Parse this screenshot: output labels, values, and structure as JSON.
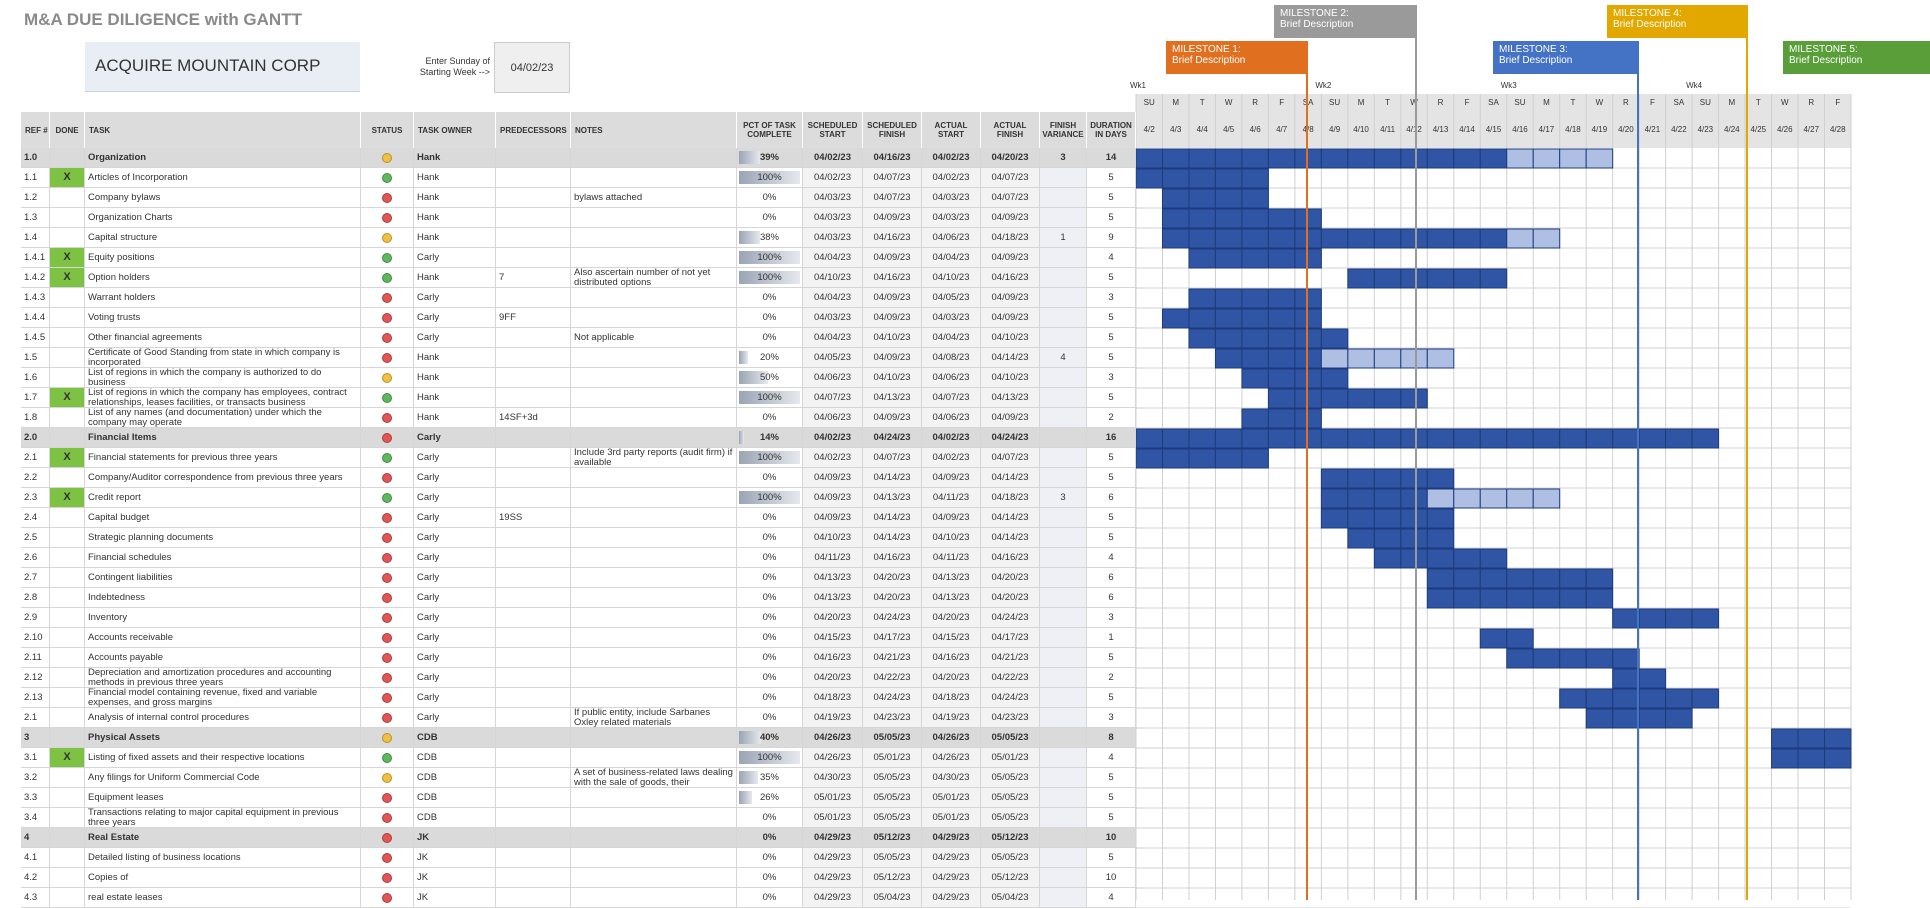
{
  "header": {
    "title": "M&A DUE DILIGENCE with GANTT",
    "company": "ACQUIRE MOUNTAIN CORP",
    "start_label": "Enter Sunday of Starting Week -->",
    "start_date": "04/02/23"
  },
  "milestones": [
    {
      "title": "MILESTONE 1:",
      "description": "Brief Description",
      "color": "#e07020"
    },
    {
      "title": "MILESTONE 2:",
      "description": "Brief Description",
      "color": "#9a9a9a"
    },
    {
      "title": "MILESTONE 3:",
      "description": "Brief Description",
      "color": "#4472c4"
    },
    {
      "title": "MILESTONE 4:",
      "description": "Brief Description",
      "color": "#e2a800"
    },
    {
      "title": "MILESTONE 5:",
      "description": "Brief Description",
      "color": "#5a9e3a"
    }
  ],
  "columns": [
    "REF #",
    "DONE",
    "TASK",
    "STATUS",
    "TASK OWNER",
    "PREDECESSORS",
    "NOTES",
    "PCT OF TASK COMPLETE",
    "SCHEDULED START",
    "SCHEDULED FINISH",
    "ACTUAL START",
    "ACTUAL FINISH",
    "FINISH VARIANCE",
    "DURATION IN DAYS"
  ],
  "gantt": {
    "weeks": [
      "Wk1",
      "Wk2",
      "Wk3",
      "Wk4"
    ],
    "days": [
      "SU",
      "M",
      "T",
      "W",
      "R",
      "F",
      "SA",
      "SU",
      "M",
      "T",
      "W",
      "R",
      "F",
      "SA",
      "SU",
      "M",
      "T",
      "W",
      "R",
      "F",
      "SA",
      "SU",
      "M",
      "T",
      "W",
      "R",
      "F"
    ],
    "dates": [
      "4/2",
      "4/3",
      "4/4",
      "4/5",
      "4/6",
      "4/7",
      "4/8",
      "4/9",
      "4/10",
      "4/11",
      "4/12",
      "4/13",
      "4/14",
      "4/15",
      "4/16",
      "4/17",
      "4/18",
      "4/19",
      "4/20",
      "4/21",
      "4/22",
      "4/23",
      "4/24",
      "4/25",
      "4/26",
      "4/27",
      "4/28"
    ]
  },
  "group_rows": [
    0,
    14,
    29,
    34
  ],
  "rows": [
    [
      "1.0",
      null,
      "Organization",
      "yellow",
      "Hank",
      null,
      null,
      "39%",
      "04/02/23",
      "04/16/23",
      "04/02/23",
      "04/20/23",
      "3",
      "14"
    ],
    [
      "1.1",
      "X",
      "Articles of Incorporation",
      "green",
      "Hank",
      null,
      null,
      "100%",
      "04/02/23",
      "04/07/23",
      "04/02/23",
      "04/07/23",
      null,
      "5"
    ],
    [
      "1.2",
      null,
      "Company bylaws",
      "red",
      "Hank",
      null,
      "bylaws attached",
      "0%",
      "04/03/23",
      "04/07/23",
      "04/03/23",
      "04/07/23",
      null,
      "5"
    ],
    [
      "1.3",
      null,
      "Organization Charts",
      "red",
      "Hank",
      null,
      null,
      "0%",
      "04/03/23",
      "04/09/23",
      "04/03/23",
      "04/09/23",
      null,
      "5"
    ],
    [
      "1.4",
      null,
      "Capital structure",
      "yellow",
      "Hank",
      null,
      null,
      "38%",
      "04/03/23",
      "04/16/23",
      "04/06/23",
      "04/18/23",
      "1",
      "9"
    ],
    [
      "1.4.1",
      "X",
      "Equity positions",
      "green",
      "Carly",
      null,
      null,
      "100%",
      "04/04/23",
      "04/09/23",
      "04/04/23",
      "04/09/23",
      null,
      "4"
    ],
    [
      "1.4.2",
      "X",
      "Option holders",
      "green",
      "Hank",
      "7",
      "Also ascertain number of not yet distributed options",
      "100%",
      "04/10/23",
      "04/16/23",
      "04/10/23",
      "04/16/23",
      null,
      "5"
    ],
    [
      "1.4.3",
      null,
      "Warrant holders",
      "red",
      "Carly",
      null,
      null,
      "0%",
      "04/04/23",
      "04/09/23",
      "04/05/23",
      "04/09/23",
      null,
      "3"
    ],
    [
      "1.4.4",
      null,
      "Voting trusts",
      "red",
      "Carly",
      "9FF",
      null,
      "0%",
      "04/03/23",
      "04/09/23",
      "04/03/23",
      "04/09/23",
      null,
      "5"
    ],
    [
      "1.4.5",
      null,
      "Other financial agreements",
      "red",
      "Carly",
      null,
      "Not applicable",
      "0%",
      "04/04/23",
      "04/10/23",
      "04/04/23",
      "04/10/23",
      null,
      "5"
    ],
    [
      "1.5",
      null,
      "Certificate of Good Standing from state in which company is incorporated",
      "red",
      "Hank",
      null,
      null,
      "20%",
      "04/05/23",
      "04/09/23",
      "04/08/23",
      "04/14/23",
      "4",
      "5"
    ],
    [
      "1.6",
      null,
      "List of regions in which the company is authorized to do business",
      "yellow",
      "Hank",
      null,
      null,
      "50%",
      "04/06/23",
      "04/10/23",
      "04/06/23",
      "04/10/23",
      null,
      "3"
    ],
    [
      "1.7",
      "X",
      "List of regions in which the company has employees, contract relationships, leases facilities, or transacts business",
      "green",
      "Hank",
      null,
      null,
      "100%",
      "04/07/23",
      "04/13/23",
      "04/07/23",
      "04/13/23",
      null,
      "5"
    ],
    [
      "1.8",
      null,
      "List of any names (and documentation) under which the company may operate",
      "red",
      "Hank",
      "14SF+3d",
      null,
      "0%",
      "04/06/23",
      "04/09/23",
      "04/06/23",
      "04/09/23",
      null,
      "2"
    ],
    [
      "2.0",
      null,
      "Financial Items",
      "red",
      "Carly",
      null,
      null,
      "14%",
      "04/02/23",
      "04/24/23",
      "04/02/23",
      "04/24/23",
      null,
      "16"
    ],
    [
      "2.1",
      "X",
      "Financial statements for previous three years",
      "green",
      "Carly",
      null,
      "Include 3rd party reports (audit firm) if available",
      "100%",
      "04/02/23",
      "04/07/23",
      "04/02/23",
      "04/07/23",
      null,
      "5"
    ],
    [
      "2.2",
      null,
      "Company/Auditor correspondence from previous three years",
      "red",
      "Carly",
      null,
      null,
      "0%",
      "04/09/23",
      "04/14/23",
      "04/09/23",
      "04/14/23",
      null,
      "5"
    ],
    [
      "2.3",
      "X",
      "Credit report",
      "green",
      "Carly",
      null,
      null,
      "100%",
      "04/09/23",
      "04/13/23",
      "04/11/23",
      "04/18/23",
      "3",
      "6"
    ],
    [
      "2.4",
      null,
      "Capital budget",
      "red",
      "Carly",
      "19SS",
      null,
      "0%",
      "04/09/23",
      "04/14/23",
      "04/09/23",
      "04/14/23",
      null,
      "5"
    ],
    [
      "2.5",
      null,
      "Strategic planning documents",
      "red",
      "Carly",
      null,
      null,
      "0%",
      "04/10/23",
      "04/14/23",
      "04/10/23",
      "04/14/23",
      null,
      "5"
    ],
    [
      "2.6",
      null,
      "Financial schedules",
      "red",
      "Carly",
      null,
      null,
      "0%",
      "04/11/23",
      "04/16/23",
      "04/11/23",
      "04/16/23",
      null,
      "4"
    ],
    [
      "2.7",
      null,
      "Contingent liabilities",
      "red",
      "Carly",
      null,
      null,
      "0%",
      "04/13/23",
      "04/20/23",
      "04/13/23",
      "04/20/23",
      null,
      "6"
    ],
    [
      "2.8",
      null,
      "Indebtedness",
      "red",
      "Carly",
      null,
      null,
      "0%",
      "04/13/23",
      "04/20/23",
      "04/13/23",
      "04/20/23",
      null,
      "6"
    ],
    [
      "2.9",
      null,
      "Inventory",
      "red",
      "Carly",
      null,
      null,
      "0%",
      "04/20/23",
      "04/24/23",
      "04/20/23",
      "04/24/23",
      null,
      "3"
    ],
    [
      "2.10",
      null,
      "Accounts receivable",
      "red",
      "Carly",
      null,
      null,
      "0%",
      "04/15/23",
      "04/17/23",
      "04/15/23",
      "04/17/23",
      null,
      "1"
    ],
    [
      "2.11",
      null,
      "Accounts payable",
      "red",
      "Carly",
      null,
      null,
      "0%",
      "04/16/23",
      "04/21/23",
      "04/16/23",
      "04/21/23",
      null,
      "5"
    ],
    [
      "2.12",
      null,
      "Depreciation and amortization procedures and accounting methods in previous three years",
      "red",
      "Carly",
      null,
      null,
      "0%",
      "04/20/23",
      "04/22/23",
      "04/20/23",
      "04/22/23",
      null,
      "2"
    ],
    [
      "2.13",
      null,
      "Financial model containing revenue, fixed and variable expenses, and gross margins",
      "red",
      "Carly",
      null,
      null,
      "0%",
      "04/18/23",
      "04/24/23",
      "04/18/23",
      "04/24/23",
      null,
      "5"
    ],
    [
      "2.1",
      null,
      "Analysis of internal control procedures",
      "red",
      "Carly",
      null,
      "If public entity, include Sarbanes Oxley related materials",
      "0%",
      "04/19/23",
      "04/23/23",
      "04/19/23",
      "04/23/23",
      null,
      "3"
    ],
    [
      "3",
      null,
      "Physical Assets",
      "yellow",
      "CDB",
      null,
      null,
      "40%",
      "04/26/23",
      "05/05/23",
      "04/26/23",
      "05/05/23",
      null,
      "8"
    ],
    [
      "3.1",
      "X",
      "Listing of fixed assets and their respective locations",
      "green",
      "CDB",
      null,
      null,
      "100%",
      "04/26/23",
      "05/01/23",
      "04/26/23",
      "05/01/23",
      null,
      "4"
    ],
    [
      "3.2",
      null,
      "Any filings for Uniform Commercial Code",
      "yellow",
      "CDB",
      null,
      "A set of business-related laws dealing with the sale of goods, their",
      "35%",
      "04/30/23",
      "05/05/23",
      "04/30/23",
      "05/05/23",
      null,
      "5"
    ],
    [
      "3.3",
      null,
      "Equipment leases",
      "red",
      "CDB",
      null,
      null,
      "26%",
      "05/01/23",
      "05/05/23",
      "05/01/23",
      "05/05/23",
      null,
      "5"
    ],
    [
      "3.4",
      null,
      "Transactions relating to major capital equipment in previous three years",
      "red",
      "CDB",
      null,
      null,
      "0%",
      "05/01/23",
      "05/05/23",
      "05/01/23",
      "05/05/23",
      null,
      "5"
    ],
    [
      "4",
      null,
      "Real Estate",
      "red",
      "JK",
      null,
      null,
      "0%",
      "04/29/23",
      "05/12/23",
      "04/29/23",
      "05/12/23",
      null,
      "10"
    ],
    [
      "4.1",
      null,
      "Detailed listing of business locations",
      "red",
      "JK",
      null,
      null,
      "0%",
      "04/29/23",
      "05/05/23",
      "04/29/23",
      "05/05/23",
      null,
      "5"
    ],
    [
      "4.2",
      null,
      "Copies of",
      "red",
      "JK",
      null,
      null,
      "0%",
      "04/29/23",
      "05/12/23",
      "04/29/23",
      "05/12/23",
      null,
      "10"
    ],
    [
      "4.3",
      null,
      "real estate leases",
      "red",
      "JK",
      null,
      null,
      "0%",
      "04/29/23",
      "05/04/23",
      "04/29/23",
      "05/04/23",
      null,
      "4"
    ]
  ]
}
